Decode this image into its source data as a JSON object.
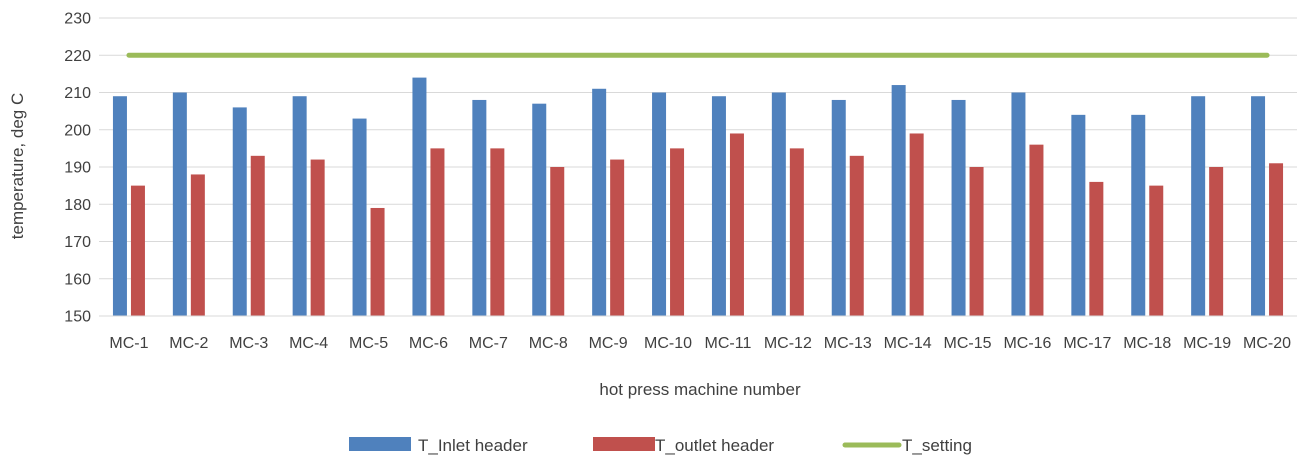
{
  "chart_data": {
    "type": "bar",
    "categories": [
      "MC-1",
      "MC-2",
      "MC-3",
      "MC-4",
      "MC-5",
      "MC-6",
      "MC-7",
      "MC-8",
      "MC-9",
      "MC-10",
      "MC-11",
      "MC-12",
      "MC-13",
      "MC-14",
      "MC-15",
      "MC-16",
      "MC-17",
      "MC-18",
      "MC-19",
      "MC-20"
    ],
    "series": [
      {
        "name": "T_Inlet header",
        "type": "bar",
        "color": "#4f81bd",
        "values": [
          209,
          210,
          206,
          209,
          203,
          214,
          208,
          207,
          211,
          210,
          209,
          210,
          208,
          212,
          208,
          210,
          204,
          204,
          209,
          209
        ]
      },
      {
        "name": "T_outlet header",
        "type": "bar",
        "color": "#c0504d",
        "values": [
          185,
          188,
          193,
          192,
          179,
          195,
          195,
          190,
          192,
          195,
          199,
          195,
          193,
          199,
          190,
          196,
          186,
          185,
          190,
          191
        ]
      },
      {
        "name": "T_setting",
        "type": "line",
        "color": "#9bbb59",
        "values": [
          220,
          220,
          220,
          220,
          220,
          220,
          220,
          220,
          220,
          220,
          220,
          220,
          220,
          220,
          220,
          220,
          220,
          220,
          220,
          220
        ]
      }
    ],
    "xlabel": "hot press machine number",
    "ylabel": "temperature, deg C",
    "ylim": [
      150,
      230
    ],
    "yticks": [
      150,
      160,
      170,
      180,
      190,
      200,
      210,
      220,
      230
    ],
    "grid": true,
    "legend_position": "bottom"
  }
}
